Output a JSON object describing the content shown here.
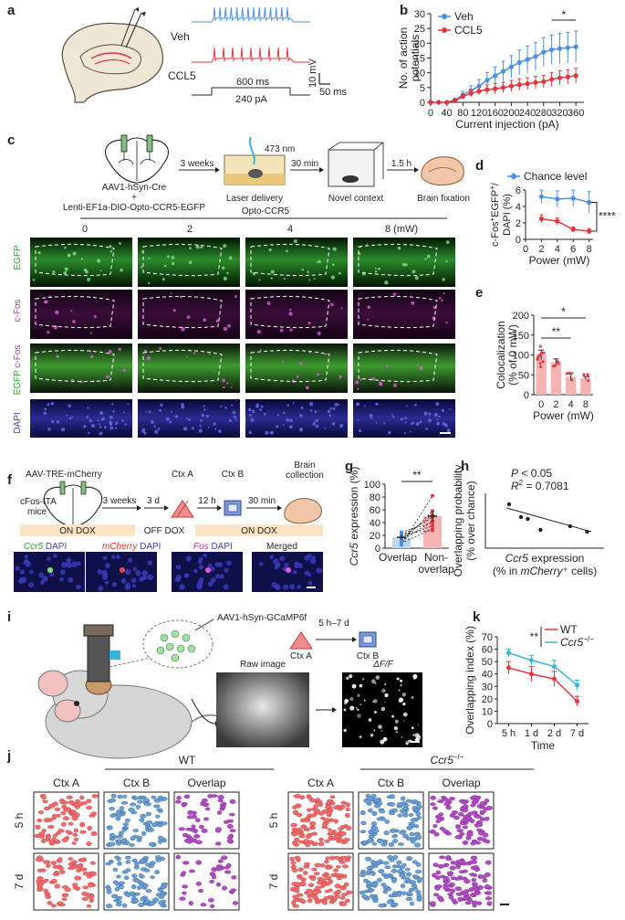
{
  "panels": {
    "a": {
      "letter": "a",
      "veh": "Veh",
      "ccl5": "CCL5",
      "dur": "600 ms",
      "current": "240 pA",
      "scale_v": "10 mV",
      "scale_t": "50 ms",
      "colors": {
        "veh": "#4a90e2",
        "ccl5": "#e2363f"
      }
    },
    "c": {
      "letter": "c",
      "virus1": "AAV1-hSyn-Cre",
      "plus": "+",
      "virus2": "Lenti-EF1a-DIO-Opto-CCR5-EGFP",
      "wk": "3 weeks",
      "laser": "473 nm",
      "laser_label": "Laser delivery",
      "t30": "30 min",
      "novel": "Novel context",
      "t15": "1.5 h",
      "fix": "Brain fixation",
      "opto": "Opto-CCR5",
      "powers": [
        "0",
        "2",
        "4",
        "8 (mW)"
      ],
      "rows": [
        {
          "label": "EGFP"
        },
        {
          "label": "c-Fos"
        },
        {
          "label_a": "EGFP",
          "label_b": "c-Fos"
        },
        {
          "label": "DAPI"
        }
      ]
    },
    "f": {
      "letter": "f",
      "virus": "AAV-TRE-mCherry",
      "mice1": "cFos-tTA",
      "mice2": "mice",
      "w3": "3 weeks",
      "d3": "3 d",
      "ctxA": "Ctx A",
      "h12": "12 h",
      "ctxB": "Ctx B",
      "m30": "30 min",
      "bc1": "Brain",
      "bc2": "collection",
      "ondox1": "ON DOX",
      "offdox": "OFF DOX",
      "ondox2": "ON DOX",
      "img1_a": "Ccr5",
      "img1_b": " DAPI",
      "img2_a": "mCherry",
      "img2_b": " DAPI",
      "img3_a": "Fos",
      "img3_b": " DAPI",
      "img4": "Merged"
    },
    "i": {
      "letter": "i",
      "virus": "AAV1-hSyn-GCaMP6f",
      "raw": "Raw image",
      "dff": "ΔF/F",
      "ctxA": "Ctx A",
      "ctxB": "Ctx B",
      "interval": "5 h–7 d"
    },
    "j": {
      "letter": "j",
      "wt": "WT",
      "ko": "Ccr5",
      "ko_sup": "−/−",
      "cols": [
        "Ctx A",
        "Ctx B",
        "Overlap"
      ],
      "rows": [
        "5 h",
        "7 d"
      ],
      "colors": [
        "#f06b6b",
        "#6a9fd4",
        "#b04bc4"
      ]
    }
  },
  "chart_data": [
    {
      "id": "b",
      "letter": "b",
      "type": "line",
      "title": "",
      "xlabel": "Current injection (pA)",
      "ylabel1": "No. of action",
      "ylabel2": "potentials",
      "xlim": [
        0,
        380
      ],
      "ylim": [
        0,
        30
      ],
      "xticks": [
        "0",
        "40",
        "80",
        "120",
        "160",
        "200",
        "240",
        "280",
        "320",
        "360"
      ],
      "yticks": [
        "0",
        "5",
        "10",
        "15",
        "20",
        "25",
        "30"
      ],
      "x": [
        0,
        20,
        40,
        60,
        80,
        100,
        120,
        140,
        160,
        180,
        200,
        220,
        240,
        260,
        280,
        300,
        320,
        340,
        360
      ],
      "series": [
        {
          "name": "Veh",
          "color": "#4a90e2",
          "values": [
            0,
            0,
            0,
            0.8,
            2.5,
            4,
            5.5,
            7.5,
            9,
            10.5,
            12,
            13.5,
            14.5,
            15.5,
            17,
            17.8,
            18.2,
            18.5,
            18.8
          ],
          "err": [
            0,
            0,
            0,
            0.6,
            1.2,
            1.6,
            2.2,
            2.6,
            3,
            3.4,
            3.8,
            4.2,
            4.5,
            4.7,
            4.9,
            5,
            5.2,
            5.2,
            5.3
          ]
        },
        {
          "name": "CCL5",
          "color": "#e2363f",
          "values": [
            0,
            0,
            0,
            0.5,
            2,
            3,
            3.8,
            4.3,
            4.6,
            5,
            5.5,
            6,
            6.3,
            6.7,
            7,
            7.8,
            8.3,
            8.6,
            9
          ],
          "err": [
            0,
            0,
            0,
            0.4,
            0.9,
            1.2,
            1.4,
            1.6,
            1.8,
            1.8,
            1.9,
            2,
            2,
            2.1,
            2.1,
            2.3,
            2.4,
            2.4,
            2.5
          ]
        }
      ],
      "annotation": "*"
    },
    {
      "id": "d",
      "letter": "d",
      "type": "line",
      "title": "",
      "legend": "Chance level",
      "ylabel1": "c-Fos",
      "ylabel_sup": "+",
      "ylabel2": "EGFP",
      "ylabel3": "DAPI (%)",
      "xlabel": "Power (mW)",
      "xlim": [
        0,
        8.5
      ],
      "ylim": [
        0,
        6
      ],
      "xticks": [
        "0",
        "2",
        "4",
        "6",
        "8"
      ],
      "yticks": [
        "0",
        "2",
        "4",
        "6"
      ],
      "x": [
        2,
        4,
        6,
        8
      ],
      "series": [
        {
          "name": "Chance level",
          "color": "#4a90e2",
          "values": [
            5.2,
            4.9,
            5,
            4.5
          ],
          "err": [
            0.8,
            1,
            1,
            1.3
          ]
        },
        {
          "name": "",
          "color": "#e2363f",
          "values": [
            2.5,
            2.2,
            1.2,
            1.0
          ],
          "err": [
            0.5,
            0.4,
            0.3,
            0.3
          ]
        }
      ],
      "annotation": "****"
    },
    {
      "id": "e",
      "letter": "e",
      "type": "bar",
      "title": "",
      "ylabel1": "Colocalization",
      "ylabel2": "(% of 0 mW)",
      "xlabel": "Power (mW)",
      "categories": [
        "0",
        "2",
        "4",
        "8"
      ],
      "values": [
        100,
        82,
        45,
        42
      ],
      "err": [
        12,
        8,
        10,
        4
      ],
      "ylim": [
        0,
        200
      ],
      "yticks": [
        "0",
        "50",
        "100",
        "150",
        "200"
      ],
      "bar_color": "#f6b3b3",
      "point_color": "#e2363f",
      "annotations": [
        "*",
        "**"
      ]
    },
    {
      "id": "g",
      "letter": "g",
      "type": "scatter",
      "title": "",
      "ylabel": "Ccr5 expression (%)",
      "ylabel_italic": "Ccr5",
      "ylabel_rest": " expression (%)",
      "categories": [
        "Overlap",
        "Non-",
        "overlap"
      ],
      "ylim": [
        0,
        100
      ],
      "yticks": [
        "0",
        "20",
        "40",
        "60",
        "80",
        "100"
      ],
      "pairs": [
        [
          5,
          82
        ],
        [
          10,
          58
        ],
        [
          15,
          52
        ],
        [
          20,
          48
        ],
        [
          12,
          42
        ],
        [
          25,
          40
        ],
        [
          18,
          35
        ],
        [
          8,
          30
        ],
        [
          22,
          28
        ]
      ],
      "means": [
        17,
        50
      ],
      "annotation": "**"
    },
    {
      "id": "h",
      "letter": "h",
      "type": "scatter",
      "title": "",
      "p_a": "P",
      "p_b": " < 0.05",
      "r_a": "R",
      "r_sup": "2",
      "r_b": " = 0.7081",
      "ylabel1": "Overlapping probability",
      "ylabel2": "(% over chance)",
      "xlabel1_a": "Ccr5",
      "xlabel1_b": " expression",
      "xlabel2_a": "(% in ",
      "xlabel2_b": "mCherry",
      "xlabel2_c": "⁺ cells)",
      "points": [
        [
          4.8,
          29
        ],
        [
          6.2,
          22
        ],
        [
          7,
          21
        ],
        [
          8.5,
          15
        ],
        [
          12,
          17
        ],
        [
          14,
          14
        ]
      ]
    },
    {
      "id": "k",
      "letter": "k",
      "type": "line",
      "title": "",
      "ylabel": "Overlapping index (%)",
      "xlabel": "Time",
      "categories": [
        "5 h",
        "1 d",
        "2 d",
        "7 d"
      ],
      "ylim": [
        0,
        70
      ],
      "yticks": [
        "0",
        "10",
        "20",
        "30",
        "40",
        "50",
        "60",
        "70"
      ],
      "series": [
        {
          "name": "WT",
          "color": "#e2363f",
          "values": [
            45,
            40,
            36,
            18
          ],
          "err": [
            5,
            6,
            6,
            4
          ]
        },
        {
          "name": "Ccr5",
          "name_sup": "−/−",
          "color": "#3ab4d8",
          "values": [
            57,
            51,
            46,
            31
          ],
          "err": [
            3,
            4,
            5,
            4
          ]
        }
      ],
      "annotation": "**"
    }
  ]
}
